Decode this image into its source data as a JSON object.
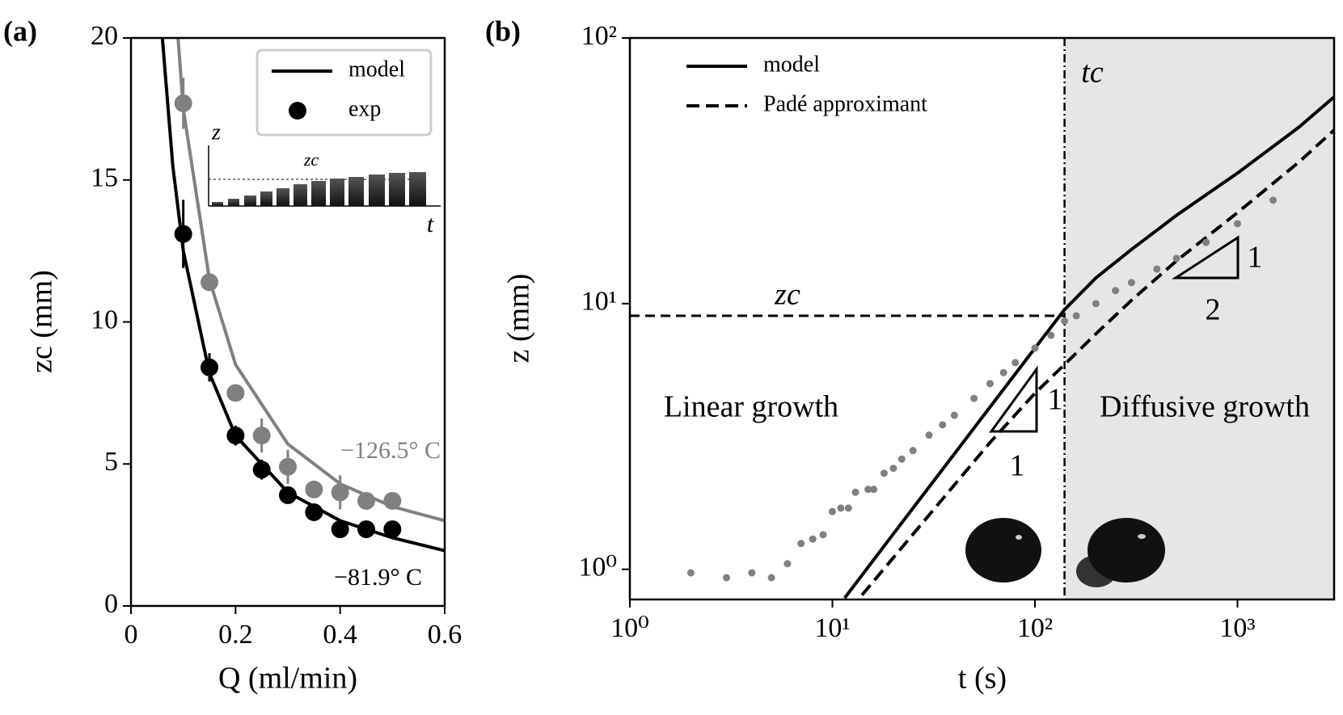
{
  "chart_data": [
    {
      "type": "line",
      "panel_label": "(a)",
      "xlabel": "Q (ml/min)",
      "ylabel": "zc (mm)",
      "xlim": [
        0,
        0.6
      ],
      "xticks": [
        0,
        0.2,
        0.4,
        0.6
      ],
      "ylim": [
        0,
        20
      ],
      "yticks": [
        0,
        5,
        10,
        15,
        20
      ],
      "legend": "upper right",
      "series": [
        {
          "name": "model",
          "style": "line",
          "color": "#000000",
          "x": [
            0.06,
            0.08,
            0.1,
            0.15,
            0.2,
            0.3,
            0.4,
            0.5,
            0.6
          ],
          "values": [
            20,
            15.5,
            12.5,
            8.2,
            6.0,
            4.0,
            3.0,
            2.4,
            1.95
          ]
        },
        {
          "name": "exp",
          "style": "markers",
          "color": "#000000",
          "x": [
            0.1,
            0.15,
            0.2,
            0.25,
            0.3,
            0.35,
            0.4,
            0.45,
            0.5
          ],
          "values": [
            13.1,
            8.4,
            6.0,
            4.8,
            3.9,
            3.3,
            2.7,
            2.7,
            2.7
          ],
          "errors": [
            1.2,
            0.5,
            0.35,
            0.35,
            0.3,
            0.3,
            0.25,
            0.25,
            0.25
          ]
        },
        {
          "style": "line",
          "color": "#808080",
          "x": [
            0.09,
            0.1,
            0.15,
            0.2,
            0.3,
            0.4,
            0.5,
            0.6
          ],
          "values": [
            20,
            17.5,
            11.5,
            8.5,
            5.7,
            4.3,
            3.5,
            3.0
          ]
        },
        {
          "style": "markers",
          "color": "#808080",
          "x": [
            0.1,
            0.15,
            0.2,
            0.25,
            0.3,
            0.35,
            0.4,
            0.45,
            0.5
          ],
          "values": [
            17.7,
            11.4,
            7.5,
            6.0,
            4.9,
            4.1,
            4.0,
            3.7,
            3.7
          ],
          "errors": [
            0.9,
            0.3,
            0.3,
            0.6,
            0.6,
            0.3,
            0.6,
            0.3,
            0.2
          ]
        }
      ],
      "annotations": [
        "−126.5° C",
        "−81.9° C"
      ],
      "inset": {
        "ylabel": "z",
        "level_label": "zc",
        "xlabel": "t"
      }
    },
    {
      "type": "line",
      "panel_label": "(b)",
      "xlabel": "t (s)",
      "ylabel": "z (mm)",
      "xscale": "log",
      "yscale": "log",
      "xlim": [
        1,
        3000
      ],
      "xticks": [
        {
          "value": 1,
          "label": "10⁰"
        },
        {
          "value": 10,
          "label": "10¹"
        },
        {
          "value": 100,
          "label": "10²"
        },
        {
          "value": 1000,
          "label": "10³"
        }
      ],
      "ylim": [
        0.77,
        100
      ],
      "yticks": [
        {
          "value": 1,
          "label": "10⁰"
        },
        {
          "value": 10,
          "label": "10¹"
        },
        {
          "value": 100,
          "label": "10²"
        }
      ],
      "legend": "upper left",
      "series": [
        {
          "name": "model",
          "style": "line",
          "color": "#000000",
          "x": [
            11.5,
            20,
            50,
            100,
            140,
            200,
            300,
            500,
            1000,
            2000,
            3000
          ],
          "values": [
            0.78,
            1.36,
            3.4,
            6.8,
            9.5,
            12.5,
            16,
            21.5,
            31,
            46,
            60
          ]
        },
        {
          "name": "Padé approximant",
          "style": "dashed",
          "color": "#000000",
          "x": [
            14,
            30,
            60,
            100,
            140,
            200,
            300,
            500,
            1000,
            2000,
            3000
          ],
          "values": [
            0.8,
            1.6,
            3.0,
            4.6,
            5.9,
            7.7,
            10.3,
            14.5,
            22,
            34,
            45
          ]
        },
        {
          "style": "markers",
          "color": "#808080",
          "x": [
            2,
            3,
            4,
            5,
            6,
            7,
            8,
            9,
            10,
            11,
            12,
            13,
            15,
            16,
            18,
            20,
            22,
            25,
            30,
            35,
            40,
            50,
            60,
            70,
            80,
            100,
            120,
            140,
            160,
            200,
            250,
            300,
            400,
            500,
            700,
            1000,
            1500
          ],
          "values": [
            0.97,
            0.93,
            0.97,
            0.93,
            1.05,
            1.25,
            1.3,
            1.35,
            1.65,
            1.7,
            1.7,
            1.95,
            2.0,
            2.0,
            2.3,
            2.4,
            2.6,
            2.8,
            3.2,
            3.5,
            3.8,
            4.4,
            5.0,
            5.5,
            6.0,
            6.8,
            7.6,
            8.6,
            9.0,
            10.0,
            11.2,
            12.0,
            13.5,
            14.8,
            17.0,
            20,
            24.5
          ]
        }
      ],
      "zc": 9.0,
      "zc_label": "zc",
      "tc": 140,
      "tc_label": "tc",
      "regions": [
        "Linear growth",
        "Diffusive growth"
      ],
      "slopes": [
        {
          "rise": "1",
          "run": "1"
        },
        {
          "rise": "1",
          "run": "2"
        }
      ]
    }
  ]
}
